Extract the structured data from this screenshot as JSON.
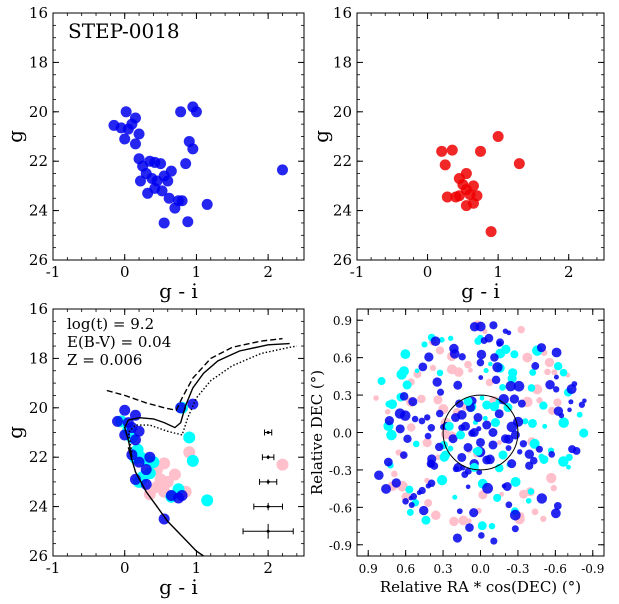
{
  "figure": {
    "colors": {
      "blue": "#0000ee",
      "red": "#ee0000",
      "cyan": "#00ffff",
      "pink": "#ffc0cb",
      "black": "#000000"
    }
  },
  "chart_data": [
    {
      "type": "scatter",
      "title": "STEP-0018",
      "xlabel": "g - i",
      "ylabel": "g",
      "xlim": [
        -1,
        2.5
      ],
      "ylim": [
        26,
        16
      ],
      "xticks": [
        "-1",
        "0",
        "1",
        "2"
      ],
      "yticks": [
        "16",
        "18",
        "20",
        "22",
        "24",
        "26"
      ],
      "series": [
        {
          "name": "blue",
          "color": "#0000ee",
          "points": [
            [
              -0.15,
              20.55
            ],
            [
              -0.05,
              20.65
            ],
            [
              0.02,
              20.0
            ],
            [
              0.05,
              20.7
            ],
            [
              0.0,
              21.1
            ],
            [
              0.1,
              20.5
            ],
            [
              0.15,
              20.25
            ],
            [
              0.2,
              20.9
            ],
            [
              0.15,
              21.3
            ],
            [
              0.2,
              21.9
            ],
            [
              0.25,
              22.2
            ],
            [
              0.3,
              22.5
            ],
            [
              0.22,
              22.8
            ],
            [
              0.35,
              22.0
            ],
            [
              0.42,
              22.05
            ],
            [
              0.5,
              22.1
            ],
            [
              0.38,
              22.7
            ],
            [
              0.45,
              22.8
            ],
            [
              0.42,
              23.1
            ],
            [
              0.55,
              22.6
            ],
            [
              0.6,
              22.8
            ],
            [
              0.62,
              23.5
            ],
            [
              0.52,
              23.2
            ],
            [
              0.32,
              23.3
            ],
            [
              0.65,
              22.4
            ],
            [
              0.75,
              23.6
            ],
            [
              0.8,
              23.6
            ],
            [
              0.7,
              23.9
            ],
            [
              0.55,
              24.5
            ],
            [
              0.88,
              24.45
            ],
            [
              0.78,
              20.0
            ],
            [
              0.95,
              19.8
            ],
            [
              1.0,
              20.0
            ],
            [
              0.9,
              21.2
            ],
            [
              0.95,
              21.5
            ],
            [
              0.85,
              22.1
            ],
            [
              1.15,
              23.75
            ],
            [
              2.2,
              22.35
            ]
          ]
        }
      ]
    },
    {
      "type": "scatter",
      "title": "",
      "xlabel": "g - i",
      "ylabel": "g",
      "xlim": [
        -1,
        2.5
      ],
      "ylim": [
        26,
        16
      ],
      "xticks": [
        "-1",
        "0",
        "1",
        "2"
      ],
      "yticks": [
        "16",
        "18",
        "20",
        "22",
        "24",
        "26"
      ],
      "series": [
        {
          "name": "red",
          "color": "#ee0000",
          "points": [
            [
              0.2,
              21.6
            ],
            [
              0.25,
              22.15
            ],
            [
              0.35,
              21.55
            ],
            [
              0.45,
              22.7
            ],
            [
              0.55,
              22.5
            ],
            [
              0.5,
              22.95
            ],
            [
              0.55,
              23.15
            ],
            [
              0.65,
              23.0
            ],
            [
              0.28,
              23.45
            ],
            [
              0.4,
              23.45
            ],
            [
              0.45,
              23.4
            ],
            [
              0.6,
              23.35
            ],
            [
              0.7,
              23.4
            ],
            [
              0.55,
              23.8
            ],
            [
              0.65,
              23.7
            ],
            [
              0.75,
              21.6
            ],
            [
              1.0,
              21.0
            ],
            [
              1.3,
              22.1
            ],
            [
              0.9,
              24.85
            ]
          ]
        }
      ]
    },
    {
      "type": "scatter",
      "title": "",
      "xlabel": "g - i",
      "ylabel": "g",
      "xlim": [
        -1,
        2.5
      ],
      "ylim": [
        26,
        16
      ],
      "xticks": [
        "-1",
        "0",
        "1",
        "2"
      ],
      "yticks": [
        "16",
        "18",
        "20",
        "22",
        "24",
        "26"
      ],
      "annotations": [
        "log(t) = 9.2",
        "E(B-V) = 0.04",
        "Z = 0.006"
      ],
      "series": [
        {
          "name": "cyan",
          "color": "#00ffff",
          "points": [
            [
              -0.05,
              20.55
            ],
            [
              0.05,
              20.9
            ],
            [
              0.1,
              21.2
            ],
            [
              0.18,
              21.7
            ],
            [
              0.15,
              22.05
            ],
            [
              0.22,
              22.0
            ],
            [
              0.3,
              22.1
            ],
            [
              0.4,
              22.2
            ],
            [
              0.25,
              22.8
            ],
            [
              0.35,
              22.65
            ],
            [
              0.8,
              20.0
            ],
            [
              0.9,
              21.2
            ],
            [
              0.95,
              22.15
            ],
            [
              0.75,
              23.3
            ],
            [
              0.65,
              23.6
            ],
            [
              1.15,
              23.75
            ],
            [
              0.2,
              23.0
            ]
          ]
        },
        {
          "name": "pink",
          "color": "#ffc0cb",
          "points": [
            [
              0.45,
              22.5
            ],
            [
              0.55,
              22.25
            ],
            [
              0.5,
              22.9
            ],
            [
              0.6,
              23.0
            ],
            [
              0.55,
              23.4
            ],
            [
              0.35,
              23.5
            ],
            [
              0.45,
              23.2
            ],
            [
              0.7,
              22.7
            ],
            [
              0.9,
              21.8
            ],
            [
              0.85,
              23.4
            ],
            [
              2.2,
              22.3
            ]
          ]
        },
        {
          "name": "blue",
          "color": "#0000ee",
          "points": [
            [
              -0.1,
              20.55
            ],
            [
              0.0,
              20.1
            ],
            [
              0.05,
              20.6
            ],
            [
              0.15,
              20.3
            ],
            [
              0.0,
              21.1
            ],
            [
              0.2,
              20.95
            ],
            [
              0.15,
              21.3
            ],
            [
              0.1,
              21.9
            ],
            [
              0.2,
              22.2
            ],
            [
              0.3,
              22.5
            ],
            [
              0.15,
              22.9
            ],
            [
              0.35,
              22.0
            ],
            [
              0.65,
              23.55
            ],
            [
              0.75,
              23.65
            ],
            [
              0.8,
              23.55
            ],
            [
              0.55,
              24.5
            ],
            [
              0.78,
              20.0
            ],
            [
              0.95,
              19.85
            ],
            [
              0.3,
              23.1
            ],
            [
              0.1,
              20.8
            ]
          ]
        }
      ],
      "isochrones": [
        {
          "name": "isochrone-solid",
          "style": "solid",
          "points": [
            [
              0.1,
              22.0
            ],
            [
              0.05,
              21.3
            ],
            [
              0.0,
              20.8
            ],
            [
              0.05,
              20.5
            ],
            [
              0.2,
              20.4
            ],
            [
              0.4,
              20.45
            ],
            [
              0.55,
              20.6
            ],
            [
              0.7,
              20.8
            ],
            [
              0.78,
              20.6
            ],
            [
              0.85,
              19.9
            ],
            [
              0.95,
              19.2
            ],
            [
              1.1,
              18.6
            ],
            [
              1.3,
              18.1
            ],
            [
              1.6,
              17.7
            ],
            [
              2.0,
              17.45
            ],
            [
              2.3,
              17.4
            ]
          ]
        },
        {
          "name": "isochrone-lower-sequence",
          "style": "solid",
          "points": [
            [
              0.05,
              21.6
            ],
            [
              0.15,
              22.6
            ],
            [
              0.3,
              23.4
            ],
            [
              0.45,
              24.0
            ],
            [
              0.6,
              24.6
            ],
            [
              0.8,
              25.2
            ],
            [
              1.0,
              25.8
            ],
            [
              1.1,
              26.0
            ]
          ]
        },
        {
          "name": "isochrone-dashed",
          "style": "dashed",
          "points": [
            [
              -0.25,
              19.3
            ],
            [
              0.0,
              19.5
            ],
            [
              0.3,
              19.8
            ],
            [
              0.55,
              20.0
            ],
            [
              0.72,
              20.1
            ],
            [
              0.8,
              19.6
            ],
            [
              0.95,
              18.8
            ],
            [
              1.2,
              18.0
            ],
            [
              1.5,
              17.55
            ],
            [
              1.9,
              17.3
            ],
            [
              2.2,
              17.2
            ]
          ]
        },
        {
          "name": "isochrone-dotted",
          "style": "dotted",
          "points": [
            [
              0.1,
              21.8
            ],
            [
              0.05,
              21.0
            ],
            [
              0.15,
              20.7
            ],
            [
              0.35,
              20.7
            ],
            [
              0.6,
              20.95
            ],
            [
              0.8,
              21.1
            ],
            [
              0.88,
              20.4
            ],
            [
              1.0,
              19.6
            ],
            [
              1.2,
              18.9
            ],
            [
              1.5,
              18.3
            ],
            [
              1.9,
              17.8
            ],
            [
              2.3,
              17.55
            ],
            [
              2.4,
              17.5
            ]
          ]
        }
      ],
      "errorbars": [
        {
          "x": 2.0,
          "y": 21.0,
          "xerr": 0.05,
          "yerr": 0.05
        },
        {
          "x": 2.0,
          "y": 22.0,
          "xerr": 0.08,
          "yerr": 0.08
        },
        {
          "x": 2.0,
          "y": 23.0,
          "xerr": 0.12,
          "yerr": 0.1
        },
        {
          "x": 2.0,
          "y": 24.0,
          "xerr": 0.2,
          "yerr": 0.15
        },
        {
          "x": 2.0,
          "y": 25.0,
          "xerr": 0.35,
          "yerr": 0.3
        }
      ]
    },
    {
      "type": "scatter",
      "title": "",
      "xlabel": "Relative RA * cos(DEC) (°)",
      "ylabel": "Relative DEC (°)",
      "xlim": [
        0.99,
        -0.99
      ],
      "ylim": [
        -0.99,
        0.99
      ],
      "xticks": [
        "0.9",
        "0.6",
        "0.3",
        "0.0",
        "-0.3",
        "-0.6",
        "-0.9"
      ],
      "yticks": [
        "0.9",
        "0.6",
        "0.3",
        "0.0",
        "-0.3",
        "-0.6",
        "-0.9"
      ],
      "circle_radius": 0.3,
      "field_radius": 0.9,
      "series": [
        {
          "name": "pink",
          "color": "#ffc0cb",
          "count": 70,
          "seed": 11
        },
        {
          "name": "cyan",
          "color": "#00ffff",
          "count": 75,
          "seed": 23
        },
        {
          "name": "blue",
          "color": "#0000ee",
          "count": 120,
          "seed": 37
        },
        {
          "name": "blue-cluster",
          "color": "#0000ee",
          "points": [
            [
              0.12,
              0.05
            ],
            [
              0.05,
              0.0
            ],
            [
              -0.05,
              0.06
            ],
            [
              0.0,
              -0.08
            ],
            [
              0.1,
              -0.12
            ],
            [
              -0.1,
              -0.1
            ],
            [
              0.2,
              0.12
            ],
            [
              -0.15,
              0.15
            ],
            [
              0.15,
              -0.2
            ],
            [
              -0.2,
              -0.05
            ],
            [
              0.08,
              0.2
            ],
            [
              -0.05,
              -0.22
            ],
            [
              0.22,
              -0.05
            ],
            [
              -0.28,
              -0.02
            ],
            [
              0.02,
              0.12
            ],
            [
              -0.1,
              0.0
            ],
            [
              0.18,
              -0.28
            ],
            [
              -0.25,
              -0.25
            ]
          ]
        },
        {
          "name": "cyan-cluster",
          "color": "#00ffff",
          "points": [
            [
              0.16,
              -0.02
            ],
            [
              0.02,
              -0.15
            ],
            [
              -0.12,
              0.08
            ],
            [
              0.25,
              0.05
            ],
            [
              -0.22,
              0.2
            ],
            [
              0.1,
              0.25
            ],
            [
              0.05,
              -0.28
            ],
            [
              -0.05,
              0.22
            ],
            [
              0.28,
              -0.18
            ],
            [
              -0.18,
              -0.18
            ]
          ]
        }
      ]
    }
  ]
}
